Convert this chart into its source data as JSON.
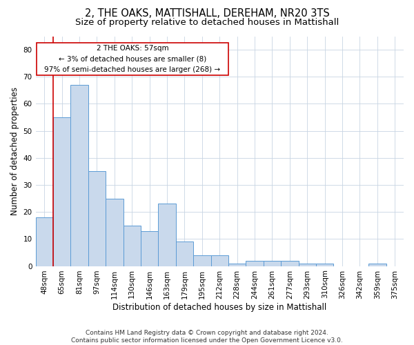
{
  "title": "2, THE OAKS, MATTISHALL, DEREHAM, NR20 3TS",
  "subtitle": "Size of property relative to detached houses in Mattishall",
  "xlabel": "Distribution of detached houses by size in Mattishall",
  "ylabel": "Number of detached properties",
  "categories": [
    "48sqm",
    "65sqm",
    "81sqm",
    "97sqm",
    "114sqm",
    "130sqm",
    "146sqm",
    "163sqm",
    "179sqm",
    "195sqm",
    "212sqm",
    "228sqm",
    "244sqm",
    "261sqm",
    "277sqm",
    "293sqm",
    "310sqm",
    "326sqm",
    "342sqm",
    "359sqm",
    "375sqm"
  ],
  "values": [
    18,
    55,
    67,
    35,
    25,
    15,
    13,
    23,
    9,
    4,
    4,
    1,
    2,
    2,
    2,
    1,
    1,
    0,
    0,
    1,
    0
  ],
  "bar_color": "#c9d9ec",
  "bar_edge_color": "#5b9bd5",
  "annotation_box_edge": "#cc0000",
  "annotation_line1": "2 THE OAKS: 57sqm",
  "annotation_line2": "← 3% of detached houses are smaller (8)",
  "annotation_line3": "97% of semi-detached houses are larger (268) →",
  "marker_line_color": "#cc0000",
  "ylim": [
    0,
    85
  ],
  "yticks": [
    0,
    10,
    20,
    30,
    40,
    50,
    60,
    70,
    80
  ],
  "footer_line1": "Contains HM Land Registry data © Crown copyright and database right 2024.",
  "footer_line2": "Contains public sector information licensed under the Open Government Licence v3.0.",
  "bg_color": "#ffffff",
  "grid_color": "#c8d4e3",
  "title_fontsize": 10.5,
  "subtitle_fontsize": 9.5,
  "axis_label_fontsize": 8.5,
  "tick_fontsize": 7.5,
  "annotation_fontsize": 7.5,
  "footer_fontsize": 6.5
}
